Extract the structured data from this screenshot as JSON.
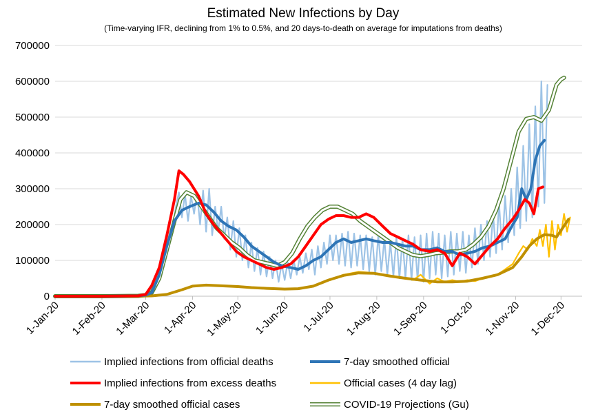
{
  "chart_data": {
    "type": "line",
    "title": "Estimated New Infections by Day",
    "subtitle": "(Time-varying IFR, declining from 1% to 0.5%, and 20 days-to-death on average for imputations from deaths)",
    "xlabel": "",
    "ylabel": "",
    "ylim": [
      0,
      700000
    ],
    "yticks": [
      0,
      100000,
      200000,
      300000,
      400000,
      500000,
      600000,
      700000
    ],
    "ytick_labels": [
      "0",
      "100000",
      "200000",
      "300000",
      "400000",
      "500000",
      "600000",
      "700000"
    ],
    "xlim": [
      "2020-01-01",
      "2020-12-15"
    ],
    "xticks": [
      "2020-01-01",
      "2020-02-01",
      "2020-03-01",
      "2020-04-01",
      "2020-05-01",
      "2020-06-01",
      "2020-07-01",
      "2020-08-01",
      "2020-09-01",
      "2020-10-01",
      "2020-11-01",
      "2020-12-01"
    ],
    "xtick_labels": [
      "1-Jan-20",
      "1-Feb-20",
      "1-Mar-20",
      "1-Apr-20",
      "1-May-20",
      "1-Jun-20",
      "1-Jul-20",
      "1-Aug-20",
      "1-Sep-20",
      "1-Oct-20",
      "1-Nov-20",
      "1-Dec-20"
    ],
    "grid": "horizontal",
    "legend_position": "bottom",
    "series": [
      {
        "name": "Implied infections from official deaths",
        "color": "#9DC3E6",
        "style": "thin",
        "x": [
          "2020-01-01",
          "2020-02-01",
          "2020-02-25",
          "2020-03-01",
          "2020-03-05",
          "2020-03-09",
          "2020-03-12",
          "2020-03-15",
          "2020-03-17",
          "2020-03-19",
          "2020-03-21",
          "2020-03-23",
          "2020-03-25",
          "2020-03-27",
          "2020-03-29",
          "2020-03-31",
          "2020-04-02",
          "2020-04-04",
          "2020-04-06",
          "2020-04-08",
          "2020-04-10",
          "2020-04-12",
          "2020-04-14",
          "2020-04-16",
          "2020-04-18",
          "2020-04-20",
          "2020-04-22",
          "2020-04-24",
          "2020-04-26",
          "2020-04-28",
          "2020-04-30",
          "2020-05-02",
          "2020-05-04",
          "2020-05-06",
          "2020-05-08",
          "2020-05-10",
          "2020-05-12",
          "2020-05-14",
          "2020-05-16",
          "2020-05-18",
          "2020-05-20",
          "2020-05-22",
          "2020-05-24",
          "2020-05-26",
          "2020-05-28",
          "2020-05-30",
          "2020-06-01",
          "2020-06-03",
          "2020-06-05",
          "2020-06-07",
          "2020-06-09",
          "2020-06-11",
          "2020-06-13",
          "2020-06-15",
          "2020-06-17",
          "2020-06-19",
          "2020-06-21",
          "2020-06-23",
          "2020-06-25",
          "2020-06-27",
          "2020-06-29",
          "2020-07-01",
          "2020-07-03",
          "2020-07-05",
          "2020-07-07",
          "2020-07-09",
          "2020-07-11",
          "2020-07-13",
          "2020-07-15",
          "2020-07-17",
          "2020-07-19",
          "2020-07-21",
          "2020-07-23",
          "2020-07-25",
          "2020-07-27",
          "2020-07-29",
          "2020-07-31",
          "2020-08-02",
          "2020-08-04",
          "2020-08-06",
          "2020-08-08",
          "2020-08-10",
          "2020-08-12",
          "2020-08-14",
          "2020-08-16",
          "2020-08-18",
          "2020-08-20",
          "2020-08-22",
          "2020-08-24",
          "2020-08-26",
          "2020-08-28",
          "2020-08-30",
          "2020-09-01",
          "2020-09-03",
          "2020-09-05",
          "2020-09-07",
          "2020-09-09",
          "2020-09-11",
          "2020-09-13",
          "2020-09-15",
          "2020-09-17",
          "2020-09-19",
          "2020-09-21",
          "2020-09-23",
          "2020-09-25",
          "2020-09-27",
          "2020-09-29",
          "2020-10-01",
          "2020-10-03",
          "2020-10-05",
          "2020-10-07",
          "2020-10-09",
          "2020-10-11",
          "2020-10-13",
          "2020-10-15",
          "2020-10-17",
          "2020-10-19",
          "2020-10-21",
          "2020-10-23",
          "2020-10-25",
          "2020-10-27",
          "2020-10-29",
          "2020-10-31",
          "2020-11-02",
          "2020-11-04",
          "2020-11-06",
          "2020-11-08",
          "2020-11-10",
          "2020-11-12",
          "2020-11-14",
          "2020-11-16",
          "2020-11-18",
          "2020-11-20",
          "2020-11-22"
        ],
        "values": [
          0,
          0,
          1000,
          5000,
          20000,
          45000,
          80000,
          120000,
          160000,
          200000,
          250000,
          290000,
          220000,
          285000,
          210000,
          280000,
          230000,
          290000,
          200000,
          295000,
          180000,
          300000,
          170000,
          250000,
          180000,
          250000,
          160000,
          220000,
          130000,
          210000,
          110000,
          190000,
          100000,
          170000,
          80000,
          150000,
          70000,
          135000,
          60000,
          125000,
          55000,
          110000,
          50000,
          100000,
          40000,
          90000,
          45000,
          95000,
          50000,
          100000,
          60000,
          110000,
          65000,
          120000,
          75000,
          130000,
          60000,
          140000,
          80000,
          150000,
          90000,
          170000,
          100000,
          170000,
          90000,
          175000,
          85000,
          180000,
          80000,
          175000,
          85000,
          170000,
          75000,
          170000,
          70000,
          165000,
          60000,
          170000,
          70000,
          160000,
          60000,
          150000,
          55000,
          165000,
          50000,
          160000,
          50000,
          170000,
          45000,
          165000,
          45000,
          170000,
          40000,
          175000,
          50000,
          180000,
          60000,
          175000,
          50000,
          170000,
          55000,
          180000,
          60000,
          175000,
          70000,
          180000,
          65000,
          170000,
          80000,
          190000,
          90000,
          200000,
          100000,
          210000,
          110000,
          230000,
          120000,
          260000,
          130000,
          280000,
          150000,
          300000,
          170000,
          360000,
          190000,
          420000,
          210000,
          480000,
          220000,
          530000,
          250000,
          600000,
          260000,
          590000
        ]
      },
      {
        "name": "7-day smoothed official",
        "color": "#2E75B6",
        "style": "thick",
        "x": [
          "2020-01-01",
          "2020-02-01",
          "2020-02-25",
          "2020-03-01",
          "2020-03-05",
          "2020-03-10",
          "2020-03-15",
          "2020-03-20",
          "2020-03-25",
          "2020-03-30",
          "2020-04-05",
          "2020-04-10",
          "2020-04-15",
          "2020-04-20",
          "2020-04-25",
          "2020-04-30",
          "2020-05-05",
          "2020-05-10",
          "2020-05-15",
          "2020-05-20",
          "2020-05-25",
          "2020-05-30",
          "2020-06-05",
          "2020-06-10",
          "2020-06-15",
          "2020-06-20",
          "2020-06-25",
          "2020-06-30",
          "2020-07-05",
          "2020-07-10",
          "2020-07-15",
          "2020-07-20",
          "2020-07-25",
          "2020-07-30",
          "2020-08-05",
          "2020-08-10",
          "2020-08-15",
          "2020-08-20",
          "2020-08-25",
          "2020-08-30",
          "2020-09-05",
          "2020-09-10",
          "2020-09-15",
          "2020-09-20",
          "2020-09-25",
          "2020-09-30",
          "2020-10-05",
          "2020-10-10",
          "2020-10-15",
          "2020-10-20",
          "2020-10-25",
          "2020-10-30",
          "2020-11-02",
          "2020-11-05",
          "2020-11-08",
          "2020-11-11",
          "2020-11-14",
          "2020-11-17",
          "2020-11-20"
        ],
        "values": [
          0,
          0,
          1000,
          3000,
          10000,
          60000,
          140000,
          210000,
          240000,
          250000,
          260000,
          255000,
          235000,
          210000,
          195000,
          185000,
          165000,
          140000,
          125000,
          110000,
          95000,
          85000,
          80000,
          75000,
          85000,
          100000,
          110000,
          130000,
          150000,
          160000,
          150000,
          155000,
          160000,
          155000,
          150000,
          150000,
          145000,
          140000,
          140000,
          130000,
          130000,
          135000,
          125000,
          125000,
          115000,
          120000,
          125000,
          135000,
          140000,
          150000,
          160000,
          200000,
          220000,
          300000,
          270000,
          300000,
          380000,
          420000,
          435000
        ]
      },
      {
        "name": "Implied infections from excess deaths",
        "color": "#FF0000",
        "style": "thick",
        "x": [
          "2020-01-01",
          "2020-02-01",
          "2020-02-25",
          "2020-03-01",
          "2020-03-05",
          "2020-03-10",
          "2020-03-15",
          "2020-03-20",
          "2020-03-23",
          "2020-03-26",
          "2020-03-30",
          "2020-04-05",
          "2020-04-10",
          "2020-04-15",
          "2020-04-20",
          "2020-04-25",
          "2020-04-30",
          "2020-05-05",
          "2020-05-10",
          "2020-05-15",
          "2020-05-20",
          "2020-05-25",
          "2020-05-30",
          "2020-06-05",
          "2020-06-10",
          "2020-06-15",
          "2020-06-20",
          "2020-06-25",
          "2020-06-30",
          "2020-07-05",
          "2020-07-10",
          "2020-07-15",
          "2020-07-20",
          "2020-07-25",
          "2020-07-30",
          "2020-08-05",
          "2020-08-10",
          "2020-08-15",
          "2020-08-20",
          "2020-08-25",
          "2020-08-30",
          "2020-09-05",
          "2020-09-10",
          "2020-09-15",
          "2020-09-20",
          "2020-09-25",
          "2020-09-30",
          "2020-10-05",
          "2020-10-10",
          "2020-10-15",
          "2020-10-20",
          "2020-10-25",
          "2020-10-30",
          "2020-11-03",
          "2020-11-07",
          "2020-11-10",
          "2020-11-13",
          "2020-11-16",
          "2020-11-19"
        ],
        "values": [
          0,
          0,
          1000,
          5000,
          30000,
          80000,
          170000,
          270000,
          350000,
          340000,
          320000,
          280000,
          230000,
          200000,
          175000,
          150000,
          125000,
          110000,
          100000,
          90000,
          80000,
          75000,
          80000,
          90000,
          110000,
          140000,
          170000,
          200000,
          215000,
          225000,
          225000,
          220000,
          220000,
          230000,
          220000,
          195000,
          175000,
          165000,
          155000,
          145000,
          130000,
          125000,
          130000,
          120000,
          85000,
          120000,
          110000,
          90000,
          115000,
          140000,
          160000,
          190000,
          215000,
          240000,
          270000,
          260000,
          230000,
          300000,
          305000
        ]
      },
      {
        "name": "Official cases (4 day lag)",
        "color": "#FFC000",
        "style": "thin",
        "x": [
          "2020-01-01",
          "2020-02-20",
          "2020-03-05",
          "2020-03-15",
          "2020-03-25",
          "2020-04-01",
          "2020-04-10",
          "2020-04-20",
          "2020-05-01",
          "2020-05-10",
          "2020-05-20",
          "2020-06-01",
          "2020-06-10",
          "2020-06-20",
          "2020-06-30",
          "2020-07-10",
          "2020-07-20",
          "2020-07-30",
          "2020-08-10",
          "2020-08-20",
          "2020-08-25",
          "2020-08-30",
          "2020-09-05",
          "2020-09-10",
          "2020-09-15",
          "2020-09-20",
          "2020-09-25",
          "2020-09-30",
          "2020-10-05",
          "2020-10-10",
          "2020-10-15",
          "2020-10-20",
          "2020-10-25",
          "2020-10-30",
          "2020-11-03",
          "2020-11-06",
          "2020-11-09",
          "2020-11-12",
          "2020-11-15",
          "2020-11-17",
          "2020-11-19",
          "2020-11-21",
          "2020-11-23",
          "2020-11-25",
          "2020-11-27",
          "2020-11-29",
          "2020-12-01",
          "2020-12-03",
          "2020-12-05",
          "2020-12-07"
        ],
        "values": [
          0,
          0,
          1000,
          5000,
          18000,
          28000,
          32000,
          29000,
          28000,
          25000,
          22000,
          20000,
          20000,
          28000,
          45000,
          60000,
          68000,
          65000,
          58000,
          50000,
          45000,
          60000,
          35000,
          50000,
          40000,
          45000,
          40000,
          45000,
          42000,
          50000,
          55000,
          60000,
          75000,
          90000,
          120000,
          140000,
          130000,
          160000,
          140000,
          185000,
          140000,
          200000,
          110000,
          210000,
          130000,
          200000,
          170000,
          230000,
          180000,
          220000
        ]
      },
      {
        "name": "7-day smoothed official cases",
        "color": "#BF9000",
        "style": "thick",
        "x": [
          "2020-01-01",
          "2020-02-20",
          "2020-03-05",
          "2020-03-15",
          "2020-03-25",
          "2020-04-01",
          "2020-04-10",
          "2020-04-20",
          "2020-05-01",
          "2020-05-10",
          "2020-05-20",
          "2020-06-01",
          "2020-06-10",
          "2020-06-20",
          "2020-06-30",
          "2020-07-10",
          "2020-07-20",
          "2020-07-30",
          "2020-08-10",
          "2020-08-20",
          "2020-08-30",
          "2020-09-10",
          "2020-09-20",
          "2020-09-30",
          "2020-10-10",
          "2020-10-20",
          "2020-10-30",
          "2020-11-05",
          "2020-11-10",
          "2020-11-15",
          "2020-11-20",
          "2020-11-25",
          "2020-11-28",
          "2020-12-02",
          "2020-12-06"
        ],
        "values": [
          0,
          0,
          1000,
          5000,
          18000,
          28000,
          31000,
          29000,
          27000,
          24000,
          22000,
          20000,
          21000,
          28000,
          45000,
          58000,
          65000,
          64000,
          56000,
          50000,
          45000,
          40000,
          40000,
          42000,
          50000,
          60000,
          80000,
          110000,
          140000,
          160000,
          172000,
          170000,
          165000,
          190000,
          215000
        ]
      },
      {
        "name": "COVID-19 Projections (Gu)",
        "color": "#548235",
        "style": "double",
        "x": [
          "2020-01-01",
          "2020-02-01",
          "2020-02-25",
          "2020-03-01",
          "2020-03-05",
          "2020-03-10",
          "2020-03-15",
          "2020-03-20",
          "2020-03-24",
          "2020-03-28",
          "2020-04-02",
          "2020-04-07",
          "2020-04-12",
          "2020-04-17",
          "2020-04-22",
          "2020-04-27",
          "2020-05-02",
          "2020-05-07",
          "2020-05-12",
          "2020-05-17",
          "2020-05-22",
          "2020-05-27",
          "2020-06-01",
          "2020-06-06",
          "2020-06-11",
          "2020-06-16",
          "2020-06-21",
          "2020-06-26",
          "2020-07-01",
          "2020-07-06",
          "2020-07-11",
          "2020-07-16",
          "2020-07-21",
          "2020-07-26",
          "2020-07-31",
          "2020-08-05",
          "2020-08-10",
          "2020-08-15",
          "2020-08-20",
          "2020-08-25",
          "2020-08-30",
          "2020-09-04",
          "2020-09-09",
          "2020-09-14",
          "2020-09-19",
          "2020-09-24",
          "2020-09-29",
          "2020-10-04",
          "2020-10-09",
          "2020-10-14",
          "2020-10-19",
          "2020-10-24",
          "2020-10-29",
          "2020-11-03",
          "2020-11-08",
          "2020-11-13",
          "2020-11-18",
          "2020-11-23",
          "2020-11-28",
          "2020-12-01",
          "2020-12-03"
        ],
        "values": [
          0,
          0,
          1000,
          3000,
          10000,
          50000,
          130000,
          210000,
          270000,
          290000,
          280000,
          250000,
          220000,
          190000,
          170000,
          150000,
          135000,
          115000,
          100000,
          95000,
          90000,
          85000,
          95000,
          120000,
          160000,
          195000,
          220000,
          240000,
          250000,
          250000,
          240000,
          230000,
          210000,
          195000,
          180000,
          165000,
          150000,
          135000,
          125000,
          115000,
          112000,
          115000,
          120000,
          122000,
          125000,
          125000,
          130000,
          145000,
          165000,
          195000,
          240000,
          300000,
          380000,
          460000,
          495000,
          500000,
          490000,
          520000,
          590000,
          605000,
          610000
        ]
      }
    ]
  }
}
